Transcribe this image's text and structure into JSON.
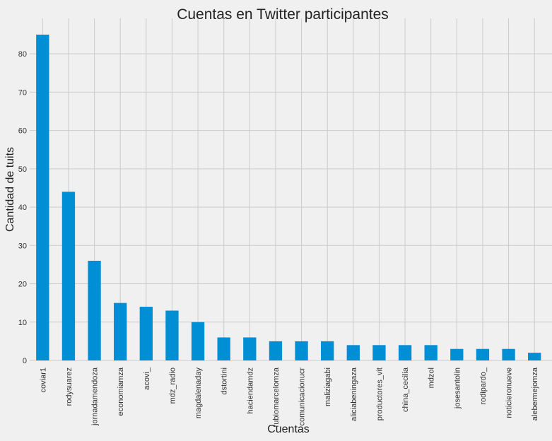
{
  "chart_data": {
    "type": "bar",
    "title": "Cuentas en Twitter participantes",
    "xlabel": "Cuentas",
    "ylabel": "Cantidad de tuits",
    "categories": [
      "coviar1",
      "rodysuarez",
      "jornadamendoza",
      "economiamza",
      "acovi_",
      "mdz_radio",
      "magdalenaday",
      "dstortini",
      "haciendamdz",
      "rubiomarcelomza",
      "comunicacionucr",
      "maliziagabi",
      "aliciabeningaza",
      "productores_vit",
      "china_cecilia",
      "mdzol",
      "josesantolin",
      "rodipardo_",
      "noticieronueve",
      "alebermejomza"
    ],
    "values": [
      85,
      44,
      26,
      15,
      14,
      13,
      10,
      6,
      6,
      5,
      5,
      5,
      4,
      4,
      4,
      4,
      3,
      3,
      3,
      2
    ],
    "ylim": [
      0,
      89.25
    ],
    "yticks": [
      0,
      10,
      20,
      30,
      40,
      50,
      60,
      70,
      80
    ],
    "grid": true,
    "bar_color": "#008fd5",
    "grid_color": "#cbcbcb",
    "background": "#f0f0f0"
  }
}
